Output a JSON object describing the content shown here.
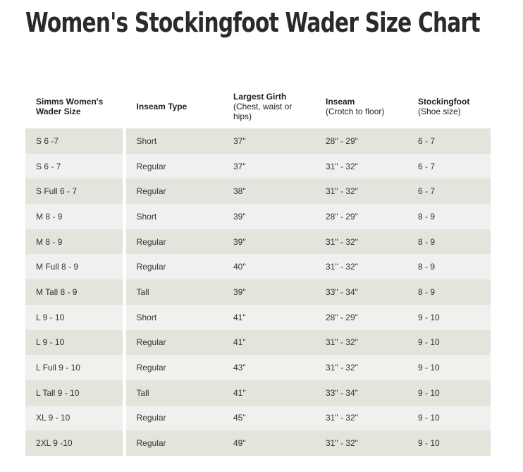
{
  "title": "Women's Stockingfoot Wader Size Chart",
  "headers": [
    {
      "main": "Simms Women's Wader Size",
      "sub": ""
    },
    {
      "main": "Inseam Type",
      "sub": ""
    },
    {
      "main": "Largest Girth",
      "sub": "(Chest, waist or hips)"
    },
    {
      "main": "Inseam",
      "sub": "(Crotch to floor)"
    },
    {
      "main": "Stockingfoot",
      "sub": "(Shoe size)"
    }
  ],
  "rows": [
    [
      "S 6 -7",
      "Short",
      "37\"",
      "28\" - 29\"",
      "6 - 7"
    ],
    [
      "S 6 - 7",
      "Regular",
      "37\"",
      "31\" - 32\"",
      "6 - 7"
    ],
    [
      "S Full 6 - 7",
      "Regular",
      "38\"",
      "31\" - 32\"",
      "6 - 7"
    ],
    [
      "M 8 - 9",
      "Short",
      "39\"",
      "28\" - 29\"",
      "8 - 9"
    ],
    [
      "M 8 - 9",
      "Regular",
      "39\"",
      "31\" - 32\"",
      "8 - 9"
    ],
    [
      "M Full 8 - 9",
      "Regular",
      "40\"",
      "31\" - 32\"",
      "8 - 9"
    ],
    [
      "M Tall 8 - 9",
      "Tall",
      "39\"",
      "33\" - 34\"",
      "8 - 9"
    ],
    [
      "L 9 - 10",
      "Short",
      "41\"",
      "28\" - 29\"",
      "9 - 10"
    ],
    [
      "L 9 - 10",
      "Regular",
      "41\"",
      "31\" - 32\"",
      "9 - 10"
    ],
    [
      "L Full 9 - 10",
      "Regular",
      "43\"",
      "31\" - 32\"",
      "9 - 10"
    ],
    [
      "L Tall 9 - 10",
      "Tall",
      "41\"",
      "33\" - 34\"",
      "9 - 10"
    ],
    [
      "XL 9 - 10",
      "Regular",
      "45\"",
      "31\" - 32\"",
      "9 - 10"
    ],
    [
      "2XL 9 -10",
      "Regular",
      "49\"",
      "31\" - 32\"",
      "9 - 10"
    ]
  ],
  "colors": {
    "row_odd": "#e3e4dc",
    "row_even": "#f0f0ee",
    "text": "#222222"
  }
}
